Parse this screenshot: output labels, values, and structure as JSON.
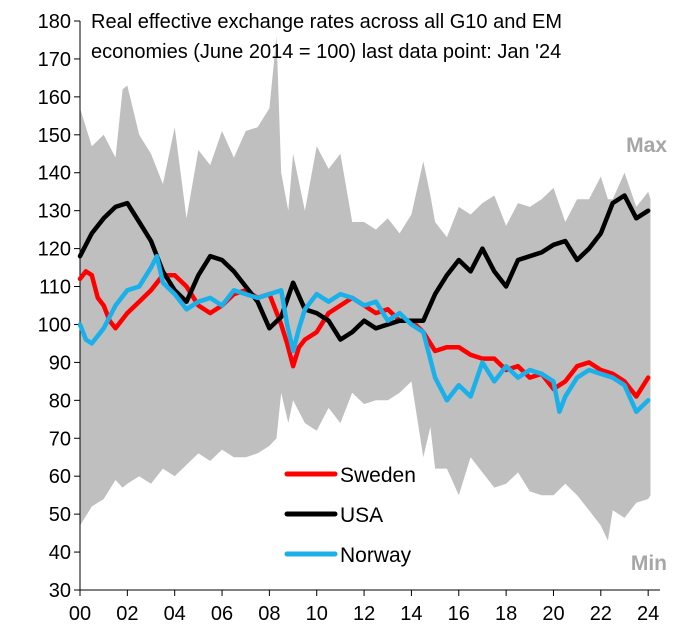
{
  "chart_data": {
    "type": "line",
    "title_lines": [
      "Real effective exchange rates across all G10 and EM",
      "economies (June 2014 = 100) last data point: Jan '24"
    ],
    "xlabel": "",
    "ylabel": "",
    "xlim": [
      2000,
      2024.5
    ],
    "ylim": [
      30,
      180
    ],
    "x_ticks": [
      2000,
      2002,
      2004,
      2006,
      2008,
      2010,
      2012,
      2014,
      2016,
      2018,
      2020,
      2022,
      2024
    ],
    "x_tick_labels": [
      "00",
      "02",
      "04",
      "06",
      "08",
      "10",
      "12",
      "14",
      "16",
      "18",
      "20",
      "22",
      "24"
    ],
    "y_ticks": [
      30,
      40,
      50,
      60,
      70,
      80,
      90,
      100,
      110,
      120,
      130,
      140,
      150,
      160,
      170,
      180
    ],
    "y_tick_labels": [
      "30",
      "40",
      "50",
      "60",
      "70",
      "80",
      "90",
      "100",
      "110",
      "120",
      "130",
      "140",
      "150",
      "160",
      "170",
      "180"
    ],
    "grid": false,
    "band": {
      "color": "#bfbfbf",
      "max_label": "Max",
      "min_label": "Min",
      "label_color": "#a6a6a6",
      "x": [
        2000,
        2000.5,
        2001,
        2001.5,
        2001.8,
        2002,
        2002.5,
        2003,
        2003.5,
        2004,
        2004.5,
        2005,
        2005.5,
        2006,
        2006.5,
        2007,
        2007.5,
        2008,
        2008.3,
        2008.5,
        2008.8,
        2009,
        2009.5,
        2010,
        2010.5,
        2011,
        2011.5,
        2012,
        2012.5,
        2013,
        2013.5,
        2014,
        2014.5,
        2014.8,
        2015,
        2015.5,
        2016,
        2016.5,
        2017,
        2017.5,
        2018,
        2018.5,
        2019,
        2019.5,
        2020,
        2020.5,
        2021,
        2021.5,
        2022,
        2022.3,
        2022.5,
        2023,
        2023.5,
        2024,
        2024.1
      ],
      "max": [
        157,
        147,
        150,
        144,
        162,
        163,
        150,
        145,
        137,
        152,
        128,
        146,
        142,
        151,
        144,
        151,
        152,
        157,
        176,
        140,
        130,
        145,
        130,
        147,
        141,
        145,
        127,
        127,
        125,
        128,
        124,
        129,
        143,
        134,
        127,
        123,
        131,
        129,
        132,
        134,
        126,
        132,
        131,
        133,
        136,
        127,
        133,
        133,
        139,
        133,
        133,
        140,
        131,
        135,
        133
      ],
      "min": [
        47,
        52,
        54,
        59,
        57,
        58,
        60,
        58,
        62,
        60,
        63,
        66,
        64,
        67,
        65,
        65,
        66,
        68,
        70,
        82,
        74,
        80,
        74,
        72,
        78,
        74,
        82,
        79,
        80,
        80,
        82,
        85,
        65,
        73,
        62,
        62,
        55,
        65,
        61,
        57,
        58,
        61,
        56,
        55,
        55,
        58,
        55,
        51,
        47,
        43,
        51,
        49,
        53,
        54,
        55
      ]
    },
    "series": [
      {
        "name": "Sweden",
        "color": "#ff0000",
        "x": [
          2000,
          2000.25,
          2000.5,
          2000.75,
          2001,
          2001.25,
          2001.5,
          2002,
          2002.5,
          2003,
          2003.5,
          2004,
          2004.5,
          2005,
          2005.5,
          2006,
          2006.5,
          2007,
          2007.5,
          2008,
          2008.5,
          2008.75,
          2009,
          2009.25,
          2009.5,
          2010,
          2010.5,
          2011,
          2011.5,
          2012,
          2012.5,
          2013,
          2013.5,
          2014,
          2014.5,
          2015,
          2015.5,
          2016,
          2016.5,
          2017,
          2017.5,
          2018,
          2018.5,
          2019,
          2019.5,
          2020,
          2020.5,
          2021,
          2021.5,
          2022,
          2022.5,
          2023,
          2023.5,
          2024
        ],
        "values": [
          112,
          114,
          113,
          107,
          105,
          101,
          99,
          103,
          106,
          109,
          113,
          113,
          110,
          105,
          103,
          105,
          108,
          109,
          107,
          108,
          100,
          95,
          89,
          94,
          96,
          98,
          103,
          105,
          107,
          105,
          103,
          104,
          101,
          101,
          98,
          93,
          94,
          94,
          92,
          91,
          91,
          88,
          89,
          86,
          87,
          83,
          85,
          89,
          90,
          88,
          87,
          85,
          81,
          86
        ]
      },
      {
        "name": "USA",
        "color": "#000000",
        "x": [
          2000,
          2000.5,
          2001,
          2001.5,
          2002,
          2002.5,
          2003,
          2003.5,
          2004,
          2004.5,
          2005,
          2005.5,
          2006,
          2006.5,
          2007,
          2007.5,
          2008,
          2008.5,
          2009,
          2009.5,
          2010,
          2010.5,
          2011,
          2011.5,
          2012,
          2012.5,
          2013,
          2013.5,
          2014,
          2014.5,
          2015,
          2015.5,
          2016,
          2016.5,
          2017,
          2017.5,
          2018,
          2018.5,
          2019,
          2019.5,
          2020,
          2020.5,
          2021,
          2021.5,
          2022,
          2022.5,
          2023,
          2023.5,
          2024
        ],
        "values": [
          118,
          124,
          128,
          131,
          132,
          127,
          122,
          114,
          109,
          106,
          113,
          118,
          117,
          114,
          110,
          106,
          99,
          102,
          111,
          104,
          103,
          101,
          96,
          98,
          101,
          99,
          100,
          101,
          101,
          101,
          108,
          113,
          117,
          114,
          120,
          114,
          110,
          117,
          118,
          119,
          121,
          122,
          117,
          120,
          124,
          132,
          134,
          128,
          130
        ]
      },
      {
        "name": "Norway",
        "color": "#1ab0ea",
        "x": [
          2000,
          2000.25,
          2000.5,
          2000.75,
          2001,
          2001.5,
          2002,
          2002.5,
          2003,
          2003.25,
          2003.5,
          2004,
          2004.5,
          2005,
          2005.5,
          2006,
          2006.5,
          2007,
          2007.5,
          2008,
          2008.5,
          2008.75,
          2009,
          2009.25,
          2009.5,
          2010,
          2010.5,
          2011,
          2011.5,
          2012,
          2012.5,
          2013,
          2013.5,
          2014,
          2014.5,
          2014.75,
          2015,
          2015.5,
          2016,
          2016.5,
          2017,
          2017.5,
          2018,
          2018.5,
          2019,
          2019.5,
          2020,
          2020.25,
          2020.5,
          2021,
          2021.5,
          2022,
          2022.5,
          2023,
          2023.5,
          2024
        ],
        "values": [
          100,
          96,
          95,
          97,
          99,
          105,
          109,
          110,
          115,
          118,
          111,
          108,
          104,
          106,
          107,
          105,
          109,
          108,
          107,
          108,
          109,
          100,
          93,
          99,
          104,
          108,
          106,
          108,
          107,
          105,
          106,
          101,
          103,
          100,
          98,
          92,
          86,
          80,
          84,
          81,
          90,
          85,
          89,
          86,
          88,
          87,
          85,
          77,
          81,
          86,
          88,
          87,
          86,
          84,
          77,
          80
        ]
      }
    ],
    "legend": {
      "placement": "bottom-center",
      "entries": [
        "Sweden",
        "USA",
        "Norway"
      ]
    }
  }
}
